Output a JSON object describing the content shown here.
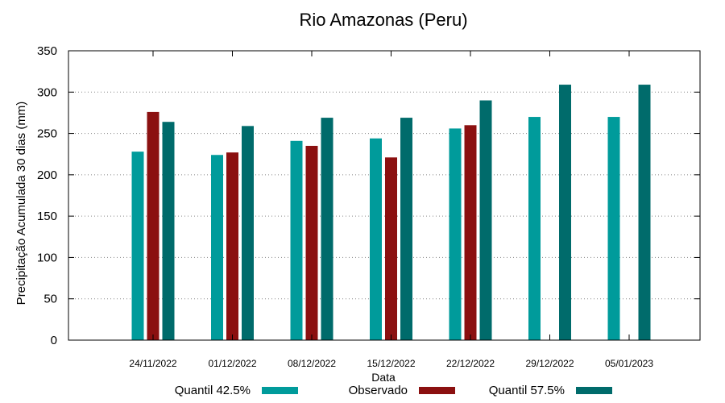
{
  "chart_data": {
    "type": "bar",
    "title": "Rio Amazonas (Peru)",
    "xlabel": "Data",
    "ylabel": "Precipitação Acumulada 30 dias (mm)",
    "ylim": [
      0,
      350
    ],
    "yticks": [
      0,
      50,
      100,
      150,
      200,
      250,
      300,
      350
    ],
    "grid": true,
    "legend_position": "bottom",
    "categories": [
      "24/11/2022",
      "01/12/2022",
      "08/12/2022",
      "15/12/2022",
      "22/12/2022",
      "29/12/2022",
      "05/01/2023"
    ],
    "series": [
      {
        "name": "Quantil 42.5%",
        "color": "#009b9b",
        "values": [
          228,
          224,
          241,
          244,
          256,
          270,
          270
        ]
      },
      {
        "name": "Observado",
        "color": "#8b1010",
        "values": [
          276,
          227,
          235,
          221,
          260,
          null,
          null
        ]
      },
      {
        "name": "Quantil 57.5%",
        "color": "#006b6b",
        "values": [
          264,
          259,
          269,
          269,
          290,
          309,
          309
        ]
      }
    ]
  }
}
